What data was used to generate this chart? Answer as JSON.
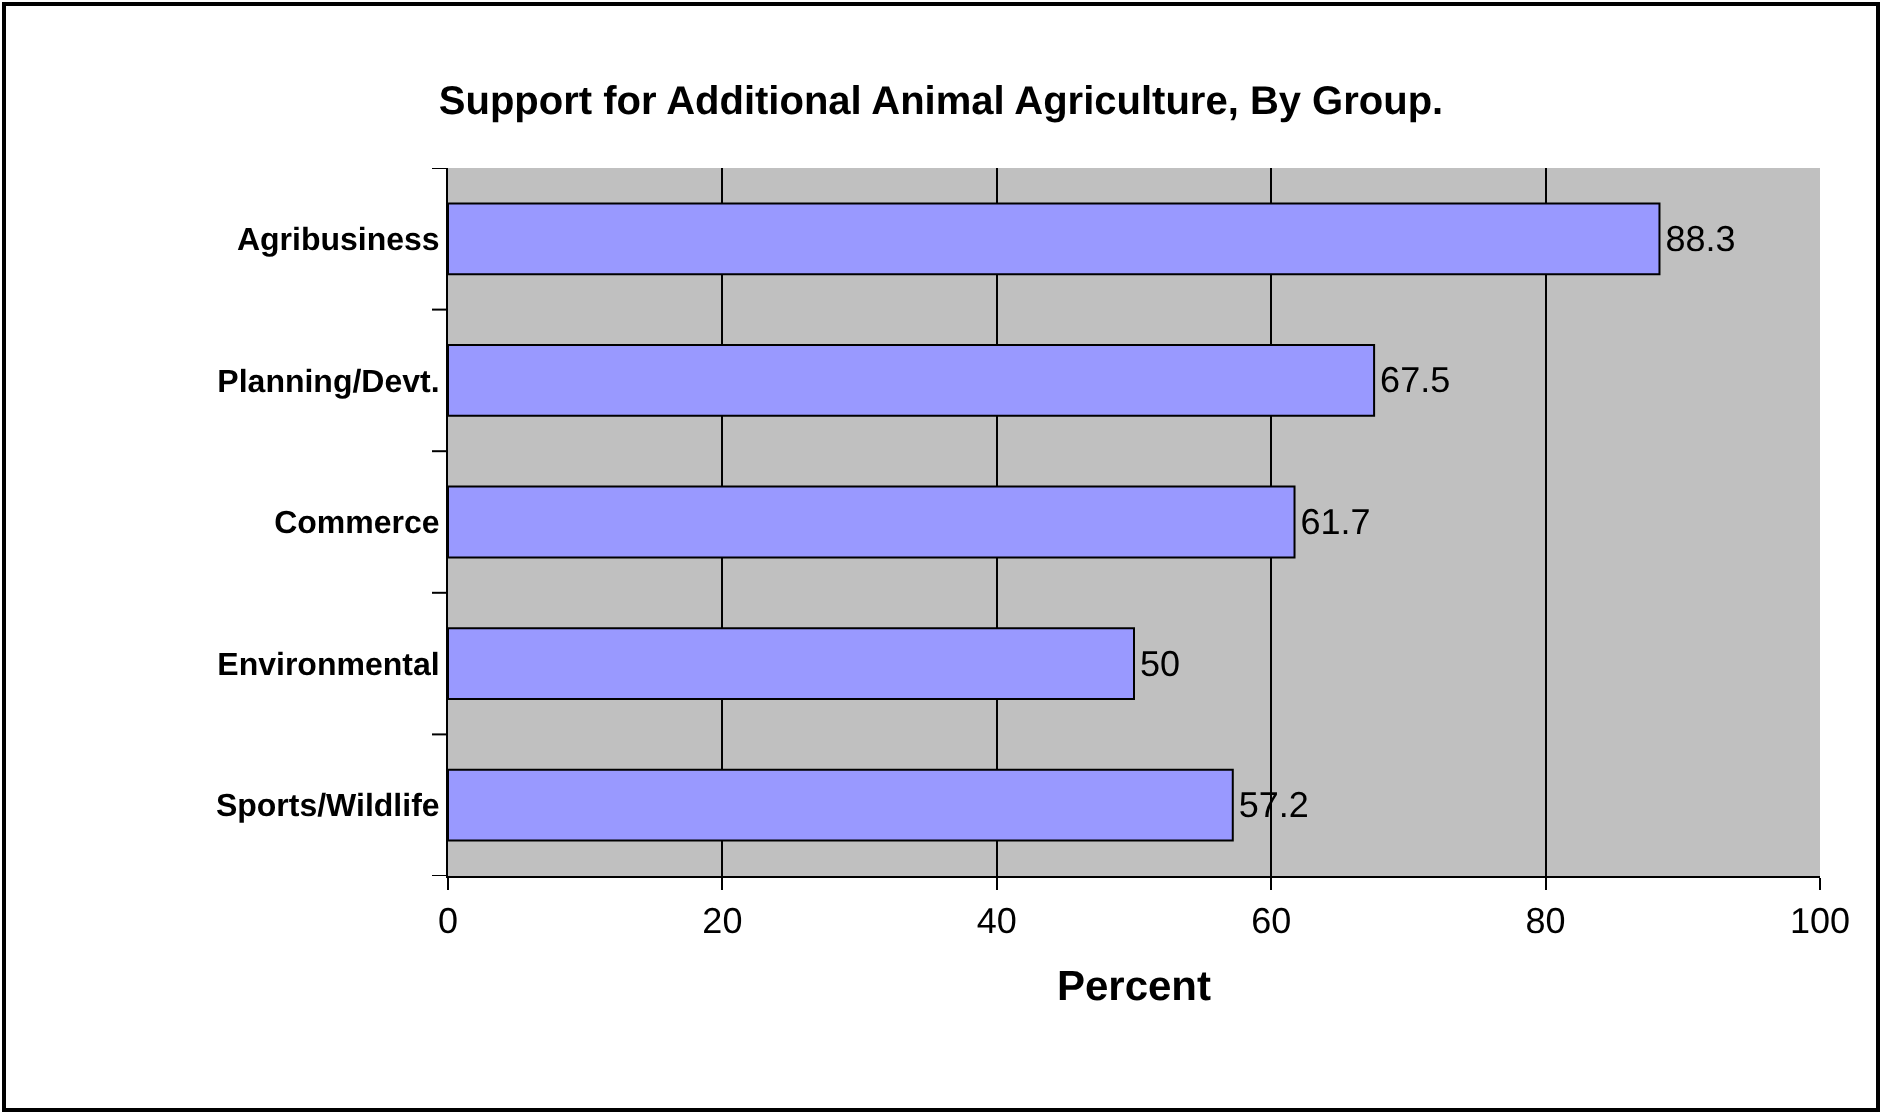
{
  "chart_data": {
    "type": "bar",
    "orientation": "horizontal",
    "title": "Support for Additional Animal Agriculture, By Group.",
    "xlabel": "Percent",
    "categories": [
      "Agribusiness",
      "Planning/Devt.",
      "Commerce",
      "Environmental",
      "Sports/Wildlife"
    ],
    "values": [
      88.3,
      67.5,
      61.7,
      50,
      57.2
    ],
    "color": "#9999ff",
    "xlim": [
      0,
      100
    ],
    "xticks": [
      0,
      20,
      40,
      60,
      80,
      100
    ],
    "grid": "x",
    "data_labels": true
  }
}
